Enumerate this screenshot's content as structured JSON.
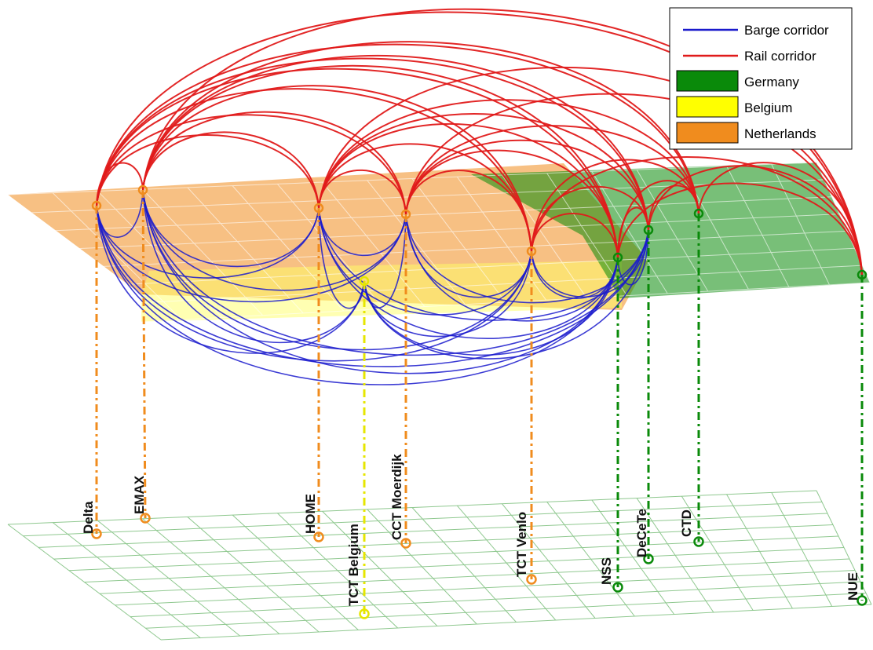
{
  "legend": {
    "items": [
      {
        "kind": "line",
        "label": "Barge corridor",
        "color": "#1a1acc"
      },
      {
        "kind": "line",
        "label": "Rail corridor",
        "color": "#e01a1a"
      },
      {
        "kind": "patch",
        "label": "Germany",
        "color": "#0a8a0a"
      },
      {
        "kind": "patch",
        "label": "Belgium",
        "color": "#ffff00"
      },
      {
        "kind": "patch",
        "label": "Netherlands",
        "color": "#f08c1e"
      }
    ]
  },
  "colors": {
    "barge": "#1a1acc",
    "rail": "#e01a1a",
    "netherlands": "#f08c1e",
    "belgium": "#e6e600",
    "germany": "#0a8a0a"
  },
  "terminals": [
    {
      "id": "delta",
      "name": "Delta",
      "country": "netherlands"
    },
    {
      "id": "emax",
      "name": "EMAX",
      "country": "netherlands"
    },
    {
      "id": "home",
      "name": "HOME",
      "country": "netherlands"
    },
    {
      "id": "tct-belgium",
      "name": "TCT Belgium",
      "country": "belgium"
    },
    {
      "id": "cct-moerdijk",
      "name": "CCT Moerdijk",
      "country": "netherlands"
    },
    {
      "id": "tct-venlo",
      "name": "TCT Venlo",
      "country": "netherlands"
    },
    {
      "id": "nss",
      "name": "NSS",
      "country": "germany"
    },
    {
      "id": "decete",
      "name": "DeCeTe",
      "country": "germany"
    },
    {
      "id": "ctd",
      "name": "CTD",
      "country": "germany"
    },
    {
      "id": "nue",
      "name": "NUE",
      "country": "germany"
    }
  ]
}
